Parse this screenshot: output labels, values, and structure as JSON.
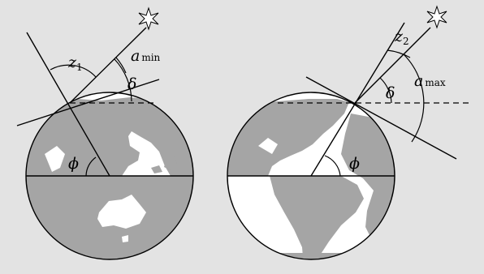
{
  "figure": {
    "background": "#e3e3e3",
    "ocean_color": "#ffffff",
    "land_color": "#a5a5a5",
    "line_color": "#000000",
    "left_globe": {
      "z_label": "z",
      "z_subscript": "1",
      "a_label": "a",
      "a_subscript": "min",
      "delta_label": "δ",
      "phi_label": "ϕ"
    },
    "right_globe": {
      "z_label": "z",
      "z_subscript": "2",
      "a_label": "a",
      "a_subscript": "max",
      "delta_label": "δ",
      "phi_label": "ϕ"
    },
    "star_icon": "star-icon"
  }
}
